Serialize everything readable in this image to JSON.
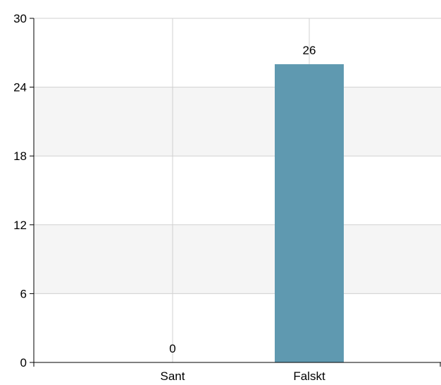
{
  "chart_data": {
    "type": "bar",
    "categories": [
      "Sant",
      "Falskt"
    ],
    "values": [
      0,
      26
    ],
    "data_labels": [
      "0",
      "26"
    ],
    "ylim": [
      0,
      30
    ],
    "yticks": [
      0,
      6,
      12,
      18,
      24,
      30
    ],
    "ytick_labels": [
      "0",
      "6",
      "12",
      "18",
      "24",
      "30"
    ],
    "grid": true,
    "alternating_band_color": "#f5f5f5",
    "bar_color": "#5f99b0"
  }
}
